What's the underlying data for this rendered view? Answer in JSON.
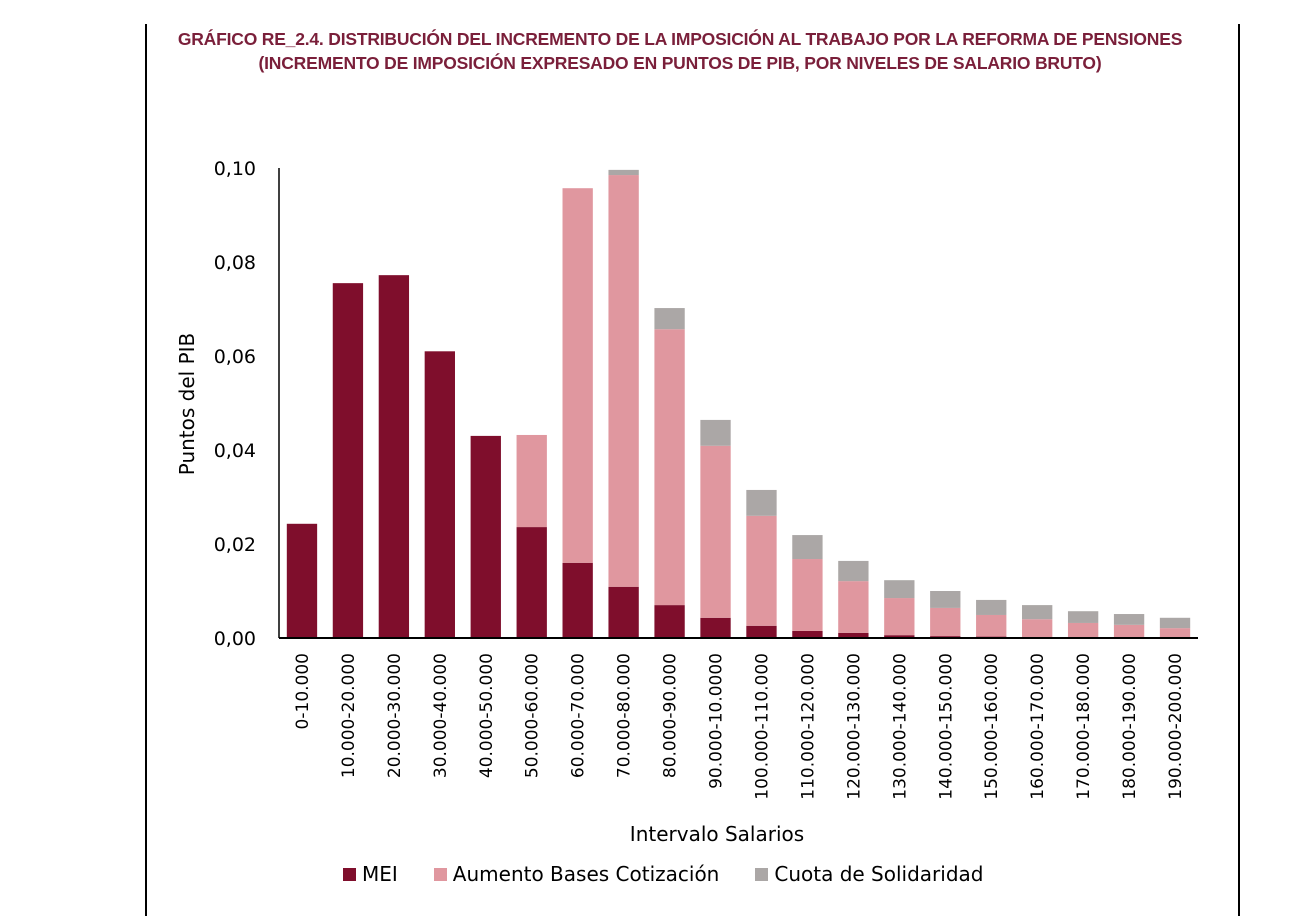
{
  "chart_data": {
    "type": "bar",
    "stacked": true,
    "title": "GRÁFICO RE_2.4.  DISTRIBUCIÓN DEL INCREMENTO DE LA IMPOSICIÓN AL TRABAJO POR LA REFORMA DE PENSIONES (INCREMENTO DE IMPOSICIÓN EXPRESADO EN PUNTOS DE PIB, POR NIVELES DE SALARIO BRUTO)",
    "xlabel": "Intervalo Salarios",
    "ylabel": "Puntos del PIB",
    "ylim": [
      0,
      0.1
    ],
    "yticks": [
      0.0,
      0.02,
      0.04,
      0.06,
      0.08,
      0.1
    ],
    "ytick_labels": [
      "0,00",
      "0,02",
      "0,04",
      "0,06",
      "0,08",
      "0,10"
    ],
    "grid": false,
    "legend_position": "bottom",
    "categories": [
      "0-10.000",
      "10.000-20.000",
      "20.000-30.000",
      "30.000-40.000",
      "40.000-50.000",
      "50.000-60.000",
      "60.000-70.000",
      "70.000-80.000",
      "80.000-90.000",
      "90.000-10.0000",
      "100.000-110.000",
      "110.000-120.000",
      "120.000-130.000",
      "130.000-140.000",
      "140.000-150.000",
      "150.000-160.000",
      "160.000-170.000",
      "170.000-180.000",
      "180.000-190.000",
      "190.000-200.000"
    ],
    "series": [
      {
        "name": "MEI",
        "color": "#7f0e2c",
        "values": [
          0.0243,
          0.0755,
          0.0772,
          0.061,
          0.043,
          0.0236,
          0.016,
          0.0109,
          0.007,
          0.0043,
          0.0026,
          0.0015,
          0.0011,
          0.0006,
          0.0004,
          0.0003,
          0.0002,
          0.0001,
          0.0001,
          0.0001
        ]
      },
      {
        "name": "Aumento Bases Cotización",
        "color": "#e0979f",
        "values": [
          0.0,
          0.0,
          0.0,
          0.0,
          0.0,
          0.0196,
          0.0797,
          0.0876,
          0.0587,
          0.0366,
          0.0234,
          0.0153,
          0.011,
          0.0079,
          0.006,
          0.0046,
          0.0038,
          0.0031,
          0.0027,
          0.002
        ]
      },
      {
        "name": "Cuota de Solidaridad",
        "color": "#aba7a6",
        "values": [
          0.0,
          0.0,
          0.0,
          0.0,
          0.0,
          0.0,
          0.0,
          0.0011,
          0.0045,
          0.0055,
          0.0055,
          0.0051,
          0.0043,
          0.0038,
          0.0036,
          0.0032,
          0.003,
          0.0025,
          0.0023,
          0.0022
        ]
      }
    ]
  }
}
